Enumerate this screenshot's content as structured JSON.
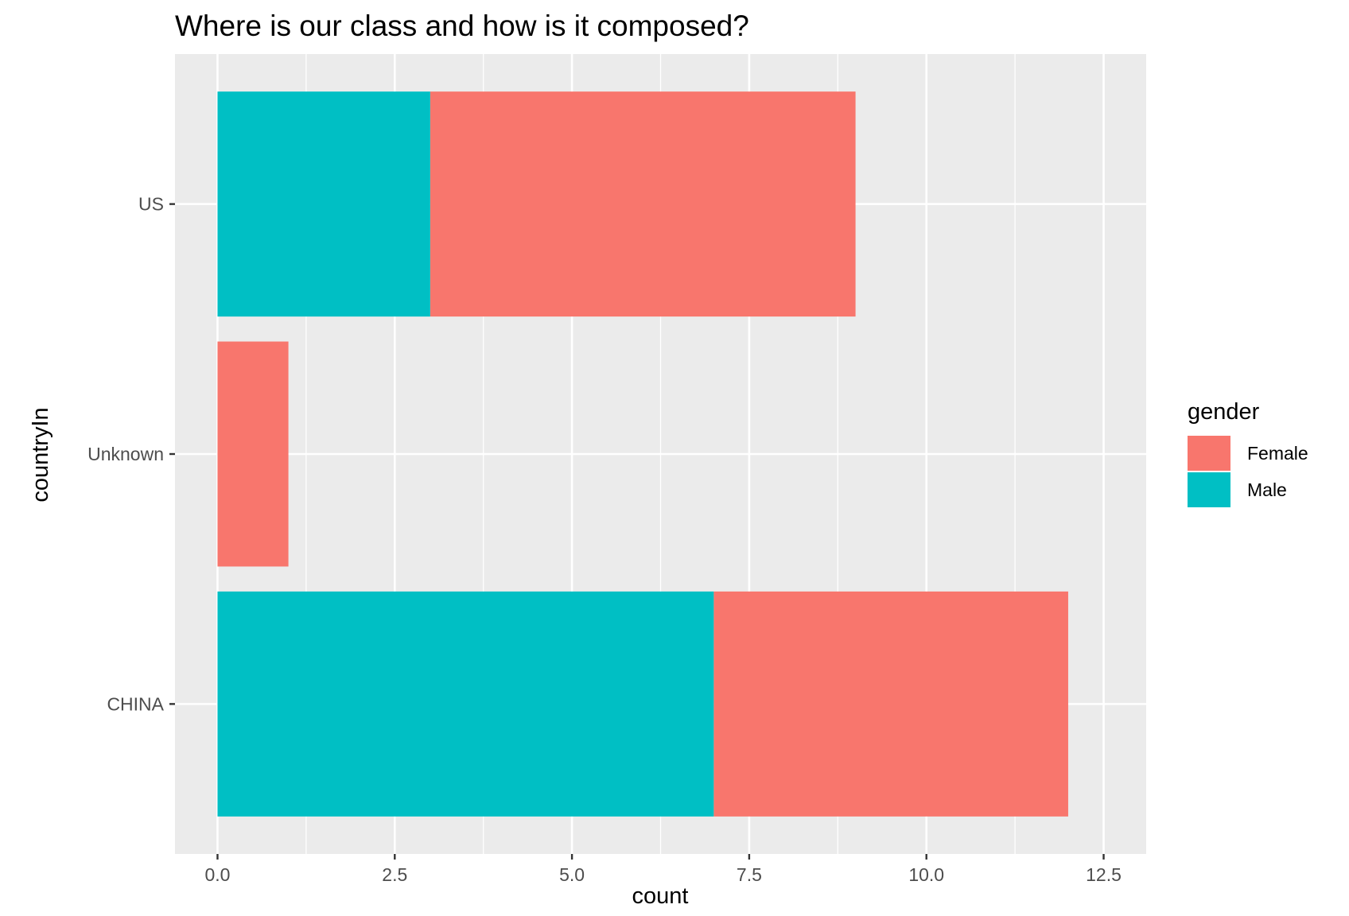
{
  "chart_data": {
    "type": "bar",
    "orientation": "horizontal",
    "stacked": true,
    "title": "Where is our class and how is it composed?",
    "xlabel": "count",
    "ylabel": "countryIn",
    "categories": [
      "CHINA",
      "Unknown",
      "US"
    ],
    "x_ticks": [
      "0.0",
      "2.5",
      "5.0",
      "7.5",
      "10.0",
      "12.5"
    ],
    "xlim": [
      0,
      12.5
    ],
    "grid": true,
    "legend": {
      "title": "gender",
      "position": "right"
    },
    "series": [
      {
        "name": "Female",
        "color": "#F8766D",
        "values": [
          5,
          1,
          6
        ]
      },
      {
        "name": "Male",
        "color": "#00BFC4",
        "values": [
          7,
          0,
          3
        ]
      }
    ]
  }
}
